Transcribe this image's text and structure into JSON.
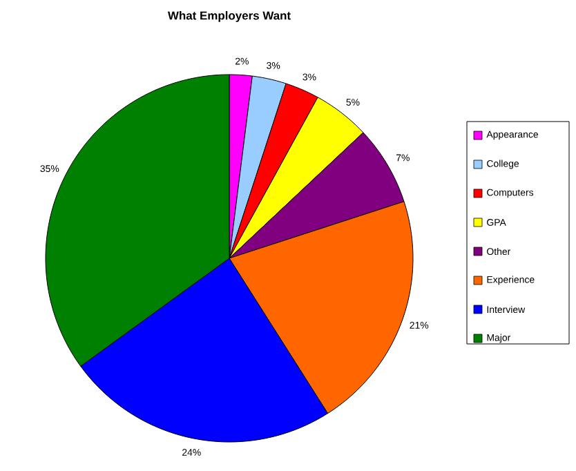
{
  "chart_data": {
    "type": "pie",
    "title": "What Employers Want",
    "categories": [
      "Appearance",
      "College",
      "Computers",
      "GPA",
      "Other",
      "Experience",
      "Interview",
      "Major"
    ],
    "values": [
      2,
      3,
      3,
      5,
      7,
      21,
      24,
      35
    ],
    "colors": [
      "#ff00ff",
      "#99ccff",
      "#ff0000",
      "#ffff00",
      "#800080",
      "#ff6600",
      "#0000ff",
      "#008000"
    ],
    "value_labels": [
      "2%",
      "3%",
      "3%",
      "5%",
      "7%",
      "21%",
      "24%",
      "35%"
    ],
    "legend": "right"
  }
}
